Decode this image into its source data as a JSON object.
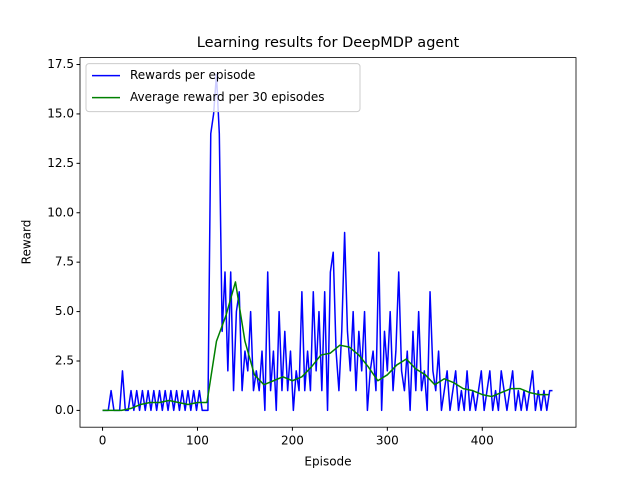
{
  "chart_data": {
    "type": "line",
    "title": "Learning results for DeepMDP agent",
    "x_label": "Episode",
    "y_label": "Reward",
    "xlim": [
      -23.75,
      498.75
    ],
    "ylim": [
      -0.85,
      17.85
    ],
    "xticks": [
      0,
      100,
      200,
      300,
      400
    ],
    "yticks": [
      {
        "value": 0,
        "label": "0.0"
      },
      2.5,
      {
        "value": 5,
        "label": "5.0"
      },
      7.5,
      {
        "value": 10,
        "label": "10.0"
      },
      12.5,
      {
        "value": 15,
        "label": "15.0"
      },
      17.5
    ],
    "legend": "upper left",
    "series": [
      {
        "name": "Rewards per episode",
        "color": "#0000ff",
        "x": [
          0,
          3,
          6,
          9,
          12,
          15,
          18,
          21,
          24,
          27,
          30,
          33,
          36,
          39,
          42,
          45,
          48,
          51,
          54,
          57,
          60,
          63,
          66,
          69,
          72,
          75,
          78,
          81,
          84,
          87,
          90,
          93,
          96,
          99,
          102,
          105,
          108,
          111,
          114,
          117,
          120,
          123,
          126,
          129,
          132,
          135,
          138,
          141,
          144,
          147,
          150,
          153,
          156,
          159,
          162,
          165,
          168,
          171,
          174,
          177,
          180,
          183,
          186,
          189,
          192,
          195,
          198,
          201,
          204,
          207,
          210,
          213,
          216,
          219,
          222,
          225,
          228,
          231,
          234,
          237,
          240,
          243,
          246,
          249,
          252,
          255,
          258,
          261,
          264,
          267,
          270,
          273,
          276,
          279,
          282,
          285,
          288,
          291,
          294,
          297,
          300,
          303,
          306,
          309,
          312,
          315,
          318,
          321,
          324,
          327,
          330,
          333,
          336,
          339,
          342,
          345,
          348,
          351,
          354,
          357,
          360,
          363,
          366,
          369,
          372,
          375,
          378,
          381,
          384,
          387,
          390,
          393,
          396,
          399,
          402,
          405,
          408,
          411,
          414,
          417,
          420,
          423,
          426,
          429,
          432,
          435,
          438,
          441,
          444,
          447,
          450,
          453,
          456,
          459,
          462,
          465,
          468,
          471,
          474
        ],
        "values": [
          0,
          0,
          0,
          1,
          0,
          0,
          0,
          2,
          0,
          0,
          1,
          0,
          1,
          0,
          1,
          0,
          1,
          0,
          1,
          0,
          1,
          0,
          1,
          0,
          1,
          0,
          1,
          0,
          1,
          0,
          1,
          0,
          1,
          0,
          1,
          0,
          0,
          0,
          14,
          15,
          17,
          14,
          4,
          7,
          2,
          7,
          1,
          5,
          6,
          1,
          3,
          2,
          5,
          1,
          2,
          1,
          3,
          0,
          7,
          1,
          3,
          0,
          5,
          1,
          4,
          1,
          3,
          0,
          2,
          1,
          6,
          1,
          3,
          1,
          6,
          2,
          5,
          1,
          6,
          0,
          7,
          8,
          3,
          1,
          4,
          9,
          4,
          2,
          5,
          1,
          4,
          2,
          5,
          0,
          2,
          3,
          1,
          8,
          0,
          4,
          2,
          5,
          1,
          3,
          7,
          2,
          1,
          3,
          0,
          4,
          1,
          5,
          1,
          2,
          0,
          6,
          2,
          1,
          3,
          0,
          1,
          2,
          0,
          1,
          2,
          0,
          1,
          0,
          2,
          0,
          1,
          0,
          1,
          2,
          0,
          1,
          2,
          0,
          1,
          0,
          2,
          1,
          0,
          1,
          2,
          0,
          1,
          0,
          1,
          0,
          1,
          2,
          0,
          1,
          0,
          1,
          0,
          1,
          1
        ]
      },
      {
        "name": "Average reward per 30 episodes",
        "color": "#008000",
        "x": [
          0,
          10,
          20,
          30,
          40,
          50,
          60,
          70,
          80,
          90,
          100,
          110,
          120,
          130,
          140,
          150,
          160,
          170,
          180,
          190,
          200,
          210,
          220,
          230,
          240,
          250,
          260,
          270,
          280,
          290,
          300,
          310,
          320,
          330,
          340,
          350,
          360,
          370,
          380,
          390,
          400,
          410,
          420,
          430,
          440,
          450,
          460,
          470
        ],
        "values": [
          0,
          0,
          0,
          0.1,
          0.3,
          0.4,
          0.4,
          0.5,
          0.4,
          0.3,
          0.4,
          0.4,
          3.5,
          4.8,
          6.5,
          3.5,
          1.8,
          1.3,
          1.5,
          1.7,
          1.5,
          1.7,
          2.2,
          2.8,
          2.9,
          3.3,
          3.2,
          2.8,
          2.2,
          1.5,
          1.8,
          2.3,
          2.6,
          2.1,
          1.8,
          1.3,
          1.6,
          1.4,
          1.1,
          1.0,
          0.8,
          0.7,
          0.9,
          1.1,
          1.1,
          0.9,
          0.8,
          0.8
        ]
      }
    ]
  }
}
